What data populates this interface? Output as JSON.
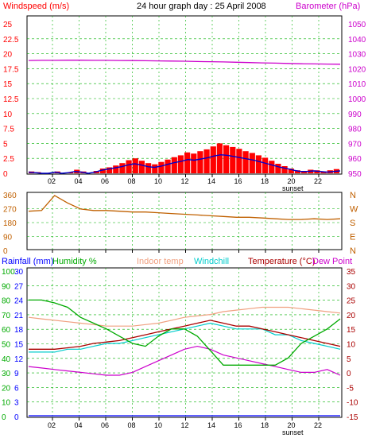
{
  "header": {
    "left_title": "Windspeed (m/s)",
    "center_title": "24 hour graph day : 25 April 2008",
    "right_title": "Barometer (hPa)"
  },
  "sunset_label": "sunset",
  "colors": {
    "wind_speed": "#ff0000",
    "wind_avg": "#0000cc",
    "barometer": "#cc00cc",
    "direction": "#c06000",
    "rainfall": "#0000ff",
    "humidity": "#00aa00",
    "indoor_temp": "#f0a080",
    "windchill": "#00cccc",
    "temperature": "#aa0000",
    "dew_point": "#cc00cc",
    "grid": "#00b000"
  },
  "chart_data": [
    {
      "type": "bar",
      "name": "windspeed-barometer",
      "x_ticks": [
        "02",
        "04",
        "06",
        "08",
        "10",
        "12",
        "14",
        "16",
        "18",
        "20",
        "22"
      ],
      "y_left_ticks": [
        "25",
        "22.5",
        "20",
        "17.5",
        "15",
        "12.5",
        "10",
        "7.5",
        "5",
        "2.5",
        "0"
      ],
      "y_left_range": [
        0,
        25
      ],
      "y_right_ticks": [
        "1050",
        "1040",
        "1030",
        "1020",
        "1010",
        "1000",
        "990",
        "980",
        "970",
        "960",
        "950"
      ],
      "y_right_range": [
        950,
        1050
      ],
      "series": [
        {
          "name": "Windspeed",
          "values": [
            0.3,
            0.2,
            0.0,
            0.1,
            0.3,
            0.0,
            0.2,
            0.6,
            0.3,
            0.0,
            0.4,
            0.8,
            1.0,
            1.3,
            1.7,
            2.2,
            2.5,
            2.1,
            1.7,
            1.5,
            1.9,
            2.3,
            2.7,
            3.0,
            3.5,
            3.3,
            3.7,
            4.0,
            4.5,
            5.0,
            4.7,
            4.4,
            4.1,
            3.7,
            3.4,
            3.0,
            2.6,
            2.1,
            1.6,
            1.2,
            0.8,
            0.5,
            0.4,
            0.6,
            0.5,
            0.3,
            0.5,
            0.7
          ]
        },
        {
          "name": "Wind average",
          "values": [
            0.2,
            0.1,
            0.0,
            0.0,
            0.2,
            0.0,
            0.1,
            0.3,
            0.2,
            0.0,
            0.2,
            0.5,
            0.7,
            0.9,
            1.1,
            1.4,
            1.6,
            1.4,
            1.1,
            1.0,
            1.2,
            1.5,
            1.8,
            2.0,
            2.3,
            2.2,
            2.4,
            2.6,
            2.9,
            3.1,
            3.0,
            2.8,
            2.6,
            2.4,
            2.2,
            1.9,
            1.6,
            1.3,
            1.0,
            0.8,
            0.5,
            0.3,
            0.3,
            0.4,
            0.3,
            0.2,
            0.3,
            0.4
          ]
        },
        {
          "name": "Barometer",
          "values": [
            1025.5,
            1025.6,
            1025.6,
            1025.7,
            1025.7,
            1025.6,
            1025.6,
            1025.5,
            1025.4,
            1025.3,
            1025.2,
            1025.1,
            1025.0,
            1024.8,
            1024.7,
            1024.5,
            1024.3,
            1024.1,
            1023.9,
            1023.7,
            1023.5,
            1023.3,
            1023.2,
            1023.1,
            1023.0
          ]
        }
      ]
    },
    {
      "type": "line",
      "name": "wind-direction",
      "x_ticks": [
        "02",
        "04",
        "06",
        "08",
        "10",
        "12",
        "14",
        "16",
        "18",
        "20",
        "22"
      ],
      "y_left_ticks": [
        "360",
        "270",
        "180",
        "90",
        "0"
      ],
      "y_left_range": [
        0,
        360
      ],
      "y_right_ticks": [
        "N",
        "W",
        "S",
        "E",
        "N"
      ],
      "series": [
        {
          "name": "Wind direction",
          "values": [
            245,
            250,
            350,
            300,
            260,
            250,
            250,
            245,
            240,
            240,
            235,
            230,
            225,
            220,
            215,
            210,
            205,
            205,
            200,
            195,
            190,
            190,
            195,
            190,
            195
          ]
        }
      ]
    },
    {
      "type": "line",
      "name": "temperature-humidity",
      "legend": [
        "Rainfall (mm)",
        "Humidity %",
        "Indoor temp",
        "Windchill",
        "Temperature (°C)",
        "Dew Point"
      ],
      "x_ticks": [
        "02",
        "04",
        "06",
        "08",
        "10",
        "12",
        "14",
        "16",
        "18",
        "20",
        "22"
      ],
      "y_rain_ticks": [
        "30",
        "27",
        "24",
        "21",
        "18",
        "15",
        "12",
        "9",
        "6",
        "3",
        "0"
      ],
      "y_rain_range": [
        0,
        30
      ],
      "y_humidity_ticks": [
        "100",
        "90",
        "80",
        "70",
        "60",
        "50",
        "40",
        "30",
        "20",
        "10",
        "0"
      ],
      "y_humidity_range": [
        0,
        100
      ],
      "y_temp_right_ticks": [
        "35",
        "30",
        "25",
        "20",
        "15",
        "10",
        "5",
        "0",
        "-5",
        "-10",
        "-15"
      ],
      "y_temp_right_range": [
        -15,
        35
      ],
      "series": [
        {
          "name": "Humidity %",
          "values": [
            80,
            80,
            78,
            75,
            68,
            64,
            60,
            55,
            50,
            48,
            55,
            60,
            60,
            55,
            45,
            35,
            35,
            35,
            35,
            35,
            40,
            50,
            55,
            60,
            67
          ]
        },
        {
          "name": "Indoor temp",
          "values": [
            19,
            18.5,
            18,
            17.5,
            17,
            16.5,
            16,
            16,
            16,
            16.5,
            17,
            18,
            19,
            19.5,
            20,
            21,
            21.5,
            22,
            22.5,
            22.5,
            22.5,
            22,
            21.5,
            21,
            20.5
          ]
        },
        {
          "name": "Temperature (°C)",
          "values": [
            8,
            8,
            8,
            8.5,
            9,
            10,
            10.5,
            11,
            12,
            13,
            14,
            15,
            16,
            17,
            18,
            17,
            16,
            16,
            15,
            14,
            13,
            12,
            11,
            10,
            9
          ]
        },
        {
          "name": "Windchill",
          "values": [
            7,
            7,
            7,
            8,
            8,
            9,
            10,
            10,
            11,
            12,
            13,
            14,
            15,
            16,
            17,
            16,
            15,
            15,
            15,
            13,
            13,
            11,
            10,
            9,
            8
          ]
        },
        {
          "name": "Dew Point",
          "values": [
            2,
            1.5,
            1,
            0.5,
            0,
            -0.5,
            -1,
            -1,
            0,
            2,
            4,
            6,
            8,
            9,
            8,
            6,
            5,
            4,
            3,
            2,
            1,
            0,
            0,
            1,
            -1
          ]
        },
        {
          "name": "Rainfall (mm)",
          "values": [
            0,
            0,
            0,
            0,
            0,
            0,
            0,
            0,
            0,
            0,
            0,
            0,
            0,
            0,
            0,
            0,
            0,
            0,
            0,
            0,
            0,
            0,
            0,
            0,
            0
          ]
        }
      ]
    }
  ]
}
